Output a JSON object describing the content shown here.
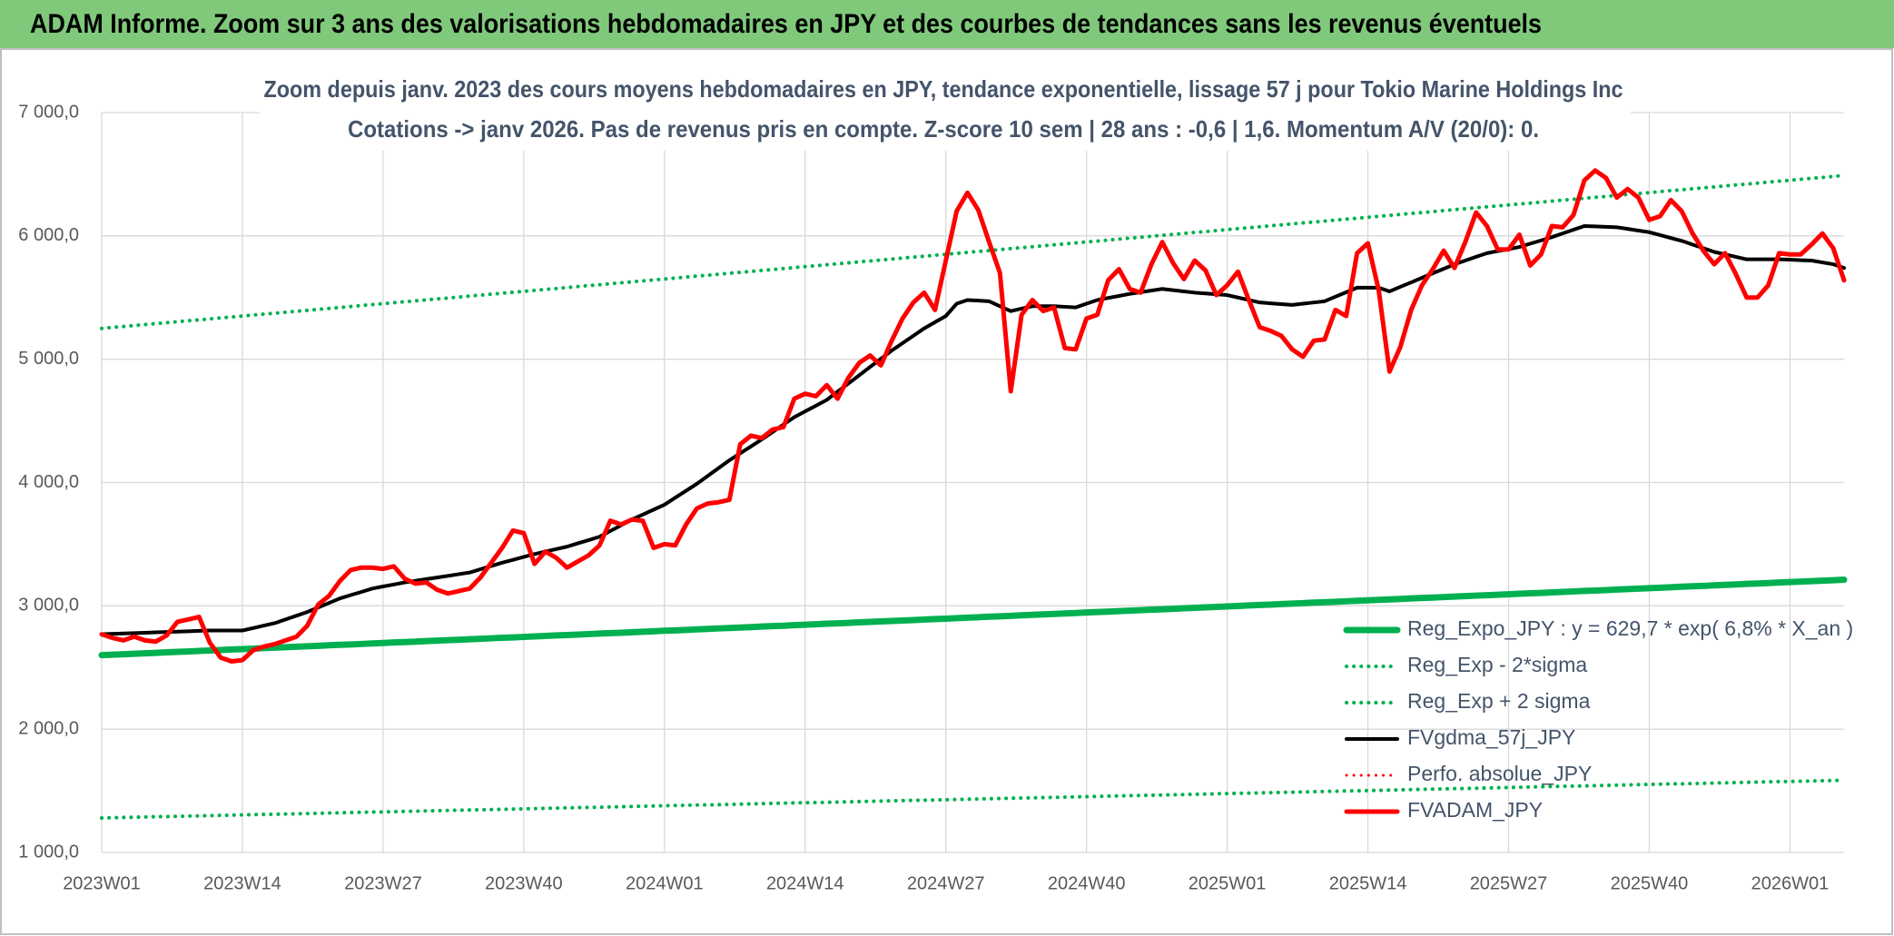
{
  "chart_data": {
    "type": "line",
    "header": "ADAM Informe. Zoom sur 3 ans des valorisations hebdomadaires en JPY et des courbes de tendances sans les revenus éventuels",
    "title": "Zoom depuis janv. 2023 des cours moyens hebdomadaires en JPY, tendance exponentielle, lissage 57 j pour Tokio Marine Holdings Inc",
    "subtitle": "Cotations -> janv 2026. Pas de revenus pris en compte. Z-score 10 sem | 28 ans : -0,6 | 1,6. Momentum A/V (20/0): 0.",
    "grid": true,
    "legend": "lower right",
    "ylim": [
      1000,
      7000
    ],
    "yticks": [
      {
        "value": 1000,
        "label": "1 000,0"
      },
      {
        "value": 2000,
        "label": "2 000,0"
      },
      {
        "value": 3000,
        "label": "3 000,0"
      },
      {
        "value": 4000,
        "label": "4 000,0"
      },
      {
        "value": 5000,
        "label": "5 000,0"
      },
      {
        "value": 6000,
        "label": "6 000,0"
      },
      {
        "value": 7000,
        "label": "7 000,0"
      }
    ],
    "categories": [
      "2023W01",
      null,
      null,
      null,
      null,
      null,
      null,
      null,
      null,
      null,
      null,
      null,
      null,
      "2023W14",
      null,
      null,
      null,
      null,
      null,
      null,
      null,
      null,
      null,
      null,
      null,
      null,
      "2023W27",
      null,
      null,
      null,
      null,
      null,
      null,
      null,
      null,
      null,
      null,
      null,
      null,
      "2023W40",
      null,
      null,
      null,
      null,
      null,
      null,
      null,
      null,
      null,
      null,
      null,
      null,
      "2024W01",
      null,
      null,
      null,
      null,
      null,
      null,
      null,
      null,
      null,
      null,
      null,
      null,
      "2024W14",
      null,
      null,
      null,
      null,
      null,
      null,
      null,
      null,
      null,
      null,
      null,
      null,
      "2024W27",
      null,
      null,
      null,
      null,
      null,
      null,
      null,
      null,
      null,
      null,
      null,
      null,
      "2024W40",
      null,
      null,
      null,
      null,
      null,
      null,
      null,
      null,
      null,
      null,
      null,
      null,
      "2025W01",
      null,
      null,
      null,
      null,
      null,
      null,
      null,
      null,
      null,
      null,
      null,
      null,
      "2025W14",
      null,
      null,
      null,
      null,
      null,
      null,
      null,
      null,
      null,
      null,
      null,
      null,
      "2025W27",
      null,
      null,
      null,
      null,
      null,
      null,
      null,
      null,
      null,
      null,
      null,
      null,
      "2025W40",
      null,
      null,
      null,
      null,
      null,
      null,
      null,
      null,
      null,
      null,
      null,
      null,
      "2026W01",
      null,
      null,
      null,
      null,
      null
    ],
    "series": [
      {
        "name": "Reg_Expo_JPY : y = 629,7 * exp( 6,8% *  X_an )",
        "color": "#00b050",
        "line_style": "solid",
        "values": [
          2600,
          2604,
          2608,
          2611,
          2615,
          2619,
          2623,
          2627,
          2630,
          2634,
          2638,
          2642,
          2646,
          2649,
          2653,
          2657,
          2661,
          2665,
          2668,
          2672,
          2676,
          2680,
          2684,
          2687,
          2691,
          2695,
          2699,
          2703,
          2706,
          2710,
          2714,
          2718,
          2722,
          2725,
          2729,
          2733,
          2737,
          2741,
          2744,
          2748,
          2752,
          2756,
          2760,
          2763,
          2767,
          2771,
          2775,
          2779,
          2782,
          2786,
          2790,
          2794,
          2798,
          2801,
          2805,
          2809,
          2813,
          2817,
          2820,
          2824,
          2828,
          2832,
          2836,
          2839,
          2843,
          2847,
          2851,
          2855,
          2858,
          2862,
          2866,
          2870,
          2874,
          2877,
          2881,
          2885,
          2889,
          2893,
          2896,
          2900,
          2904,
          2908,
          2912,
          2915,
          2919,
          2923,
          2927,
          2931,
          2934,
          2938,
          2942,
          2946,
          2950,
          2953,
          2957,
          2961,
          2965,
          2969,
          2972,
          2976,
          2980,
          2984,
          2988,
          2991,
          2995,
          2999,
          3003,
          3007,
          3010,
          3014,
          3018,
          3022,
          3026,
          3029,
          3033,
          3037,
          3041,
          3045,
          3048,
          3052,
          3056,
          3060,
          3064,
          3067,
          3071,
          3075,
          3079,
          3083,
          3086,
          3090,
          3094,
          3098,
          3102,
          3105,
          3109,
          3113,
          3117,
          3121,
          3124,
          3128,
          3132,
          3136,
          3140,
          3143,
          3147,
          3151,
          3155,
          3159,
          3162,
          3166,
          3170,
          3174,
          3178,
          3181,
          3185,
          3189,
          3193,
          3197,
          3200,
          3204,
          3208,
          3212
        ]
      },
      {
        "name": "Reg_Exp - 2*sigma",
        "color": "#00b050",
        "line_style": "dotted",
        "values": [
          1280,
          1282,
          1284,
          1286,
          1288,
          1290,
          1291,
          1293,
          1295,
          1297,
          1299,
          1301,
          1303,
          1305,
          1307,
          1309,
          1310,
          1312,
          1314,
          1316,
          1318,
          1320,
          1322,
          1324,
          1326,
          1328,
          1329,
          1331,
          1333,
          1335,
          1337,
          1339,
          1341,
          1343,
          1345,
          1347,
          1348,
          1350,
          1352,
          1354,
          1356,
          1358,
          1360,
          1362,
          1364,
          1366,
          1367,
          1369,
          1371,
          1373,
          1375,
          1377,
          1379,
          1381,
          1383,
          1385,
          1386,
          1388,
          1390,
          1392,
          1394,
          1396,
          1398,
          1400,
          1402,
          1404,
          1405,
          1407,
          1409,
          1411,
          1413,
          1415,
          1417,
          1419,
          1421,
          1423,
          1424,
          1426,
          1428,
          1430,
          1432,
          1434,
          1436,
          1438,
          1440,
          1442,
          1443,
          1445,
          1447,
          1449,
          1451,
          1453,
          1455,
          1457,
          1459,
          1461,
          1462,
          1464,
          1466,
          1468,
          1470,
          1472,
          1474,
          1476,
          1478,
          1480,
          1481,
          1483,
          1485,
          1487,
          1489,
          1491,
          1493,
          1495,
          1497,
          1499,
          1500,
          1502,
          1504,
          1506,
          1508,
          1510,
          1512,
          1514,
          1516,
          1518,
          1519,
          1521,
          1523,
          1525,
          1527,
          1529,
          1531,
          1533,
          1535,
          1537,
          1538,
          1540,
          1542,
          1544,
          1546,
          1548,
          1550,
          1552,
          1554,
          1556,
          1557,
          1559,
          1561,
          1563,
          1565,
          1567,
          1569,
          1571,
          1573,
          1575,
          1576,
          1578,
          1580,
          1582,
          1584,
          1586
        ]
      },
      {
        "name": "Reg_Exp + 2 sigma",
        "color": "#00b050",
        "line_style": "dotted",
        "values": [
          5250,
          5258,
          5265,
          5273,
          5281,
          5289,
          5296,
          5304,
          5312,
          5319,
          5327,
          5335,
          5342,
          5350,
          5358,
          5366,
          5373,
          5381,
          5389,
          5396,
          5404,
          5412,
          5419,
          5427,
          5435,
          5443,
          5450,
          5458,
          5466,
          5473,
          5481,
          5489,
          5496,
          5504,
          5512,
          5520,
          5527,
          5535,
          5543,
          5550,
          5558,
          5566,
          5573,
          5581,
          5589,
          5597,
          5604,
          5612,
          5620,
          5627,
          5635,
          5643,
          5650,
          5658,
          5666,
          5674,
          5681,
          5689,
          5697,
          5704,
          5712,
          5720,
          5727,
          5735,
          5743,
          5751,
          5758,
          5766,
          5774,
          5781,
          5789,
          5797,
          5804,
          5812,
          5820,
          5828,
          5835,
          5843,
          5851,
          5858,
          5866,
          5874,
          5881,
          5889,
          5897,
          5905,
          5912,
          5920,
          5928,
          5935,
          5943,
          5951,
          5958,
          5966,
          5974,
          5982,
          5989,
          5997,
          6005,
          6012,
          6020,
          6028,
          6035,
          6043,
          6051,
          6059,
          6066,
          6074,
          6082,
          6089,
          6097,
          6105,
          6112,
          6120,
          6128,
          6136,
          6143,
          6151,
          6159,
          6166,
          6174,
          6182,
          6189,
          6197,
          6205,
          6213,
          6220,
          6228,
          6236,
          6243,
          6251,
          6259,
          6266,
          6274,
          6282,
          6290,
          6297,
          6305,
          6313,
          6320,
          6328,
          6336,
          6343,
          6351,
          6359,
          6367,
          6374,
          6382,
          6390,
          6397,
          6405,
          6413,
          6420,
          6428,
          6436,
          6444,
          6451,
          6459,
          6467,
          6474,
          6482,
          6490
        ]
      },
      {
        "name": "FVgdma_57j_JPY",
        "color": "#000000",
        "line_style": "solid",
        "values": [
          2770,
          2773,
          2776,
          2779,
          2782,
          2785,
          2788,
          2791,
          2794,
          2797,
          2800,
          2800,
          2800,
          2800,
          2820,
          2840,
          2860,
          2890,
          2920,
          2950,
          2987,
          3023,
          3060,
          3087,
          3113,
          3140,
          3157,
          3173,
          3190,
          3203,
          3217,
          3230,
          3243,
          3257,
          3270,
          3297,
          3323,
          3350,
          3373,
          3397,
          3420,
          3440,
          3460,
          3480,
          3507,
          3533,
          3560,
          3607,
          3653,
          3700,
          3740,
          3780,
          3820,
          3877,
          3933,
          3990,
          4053,
          4117,
          4180,
          4237,
          4293,
          4350,
          4410,
          4470,
          4530,
          4577,
          4623,
          4670,
          4737,
          4803,
          4870,
          4937,
          5003,
          5070,
          5130,
          5190,
          5250,
          5300,
          5350,
          5450,
          5480,
          5475,
          5470,
          5430,
          5390,
          5410,
          5430,
          5430,
          5430,
          5425,
          5420,
          5450,
          5480,
          5497,
          5513,
          5530,
          5543,
          5557,
          5570,
          5560,
          5550,
          5540,
          5533,
          5527,
          5520,
          5500,
          5480,
          5460,
          5453,
          5447,
          5440,
          5450,
          5460,
          5470,
          5507,
          5543,
          5580,
          5580,
          5580,
          5550,
          5587,
          5623,
          5660,
          5697,
          5733,
          5770,
          5800,
          5830,
          5860,
          5877,
          5893,
          5910,
          5937,
          5963,
          5990,
          6020,
          6050,
          6080,
          6077,
          6073,
          6070,
          6057,
          6043,
          6030,
          6007,
          5983,
          5960,
          5930,
          5900,
          5870,
          5850,
          5830,
          5810,
          5810,
          5810,
          5810,
          5807,
          5803,
          5800,
          5785,
          5770,
          5740
        ]
      },
      {
        "name": "Perfo. absolue_JPY",
        "color": "#ff0000",
        "line_style": "dotted",
        "values": [
          null,
          null,
          null,
          null,
          null,
          null,
          null,
          null,
          null,
          null,
          null,
          null,
          null,
          null,
          null,
          null,
          null,
          null,
          null,
          null,
          null,
          null,
          null,
          null,
          null,
          null,
          null,
          null,
          null,
          null,
          null,
          null,
          null,
          null,
          null,
          null,
          null,
          null,
          null,
          null,
          null,
          null,
          null,
          null,
          null,
          null,
          null,
          null,
          null,
          null,
          null,
          null,
          null,
          null,
          null,
          null,
          null,
          null,
          null,
          null,
          null,
          null,
          null,
          null,
          null,
          null,
          null,
          null,
          null,
          null,
          null,
          null,
          null,
          null,
          null,
          null,
          null,
          null,
          null,
          null,
          null,
          null,
          null,
          null,
          null,
          null,
          null,
          null,
          null,
          null,
          null,
          null,
          null,
          null,
          null,
          null,
          null,
          null,
          null,
          null,
          null,
          null,
          null,
          null,
          null,
          null,
          null,
          null,
          null,
          null,
          null,
          null,
          null,
          null,
          null,
          null,
          null,
          null,
          null,
          null,
          null,
          null,
          null,
          null,
          null,
          null,
          null,
          null,
          null,
          null,
          null,
          null,
          null,
          null,
          null,
          null,
          null,
          null,
          null,
          null,
          null,
          null,
          null,
          null,
          null,
          null,
          null,
          null,
          null,
          null,
          null,
          null,
          null,
          null,
          null,
          null,
          null,
          null,
          null,
          null,
          null,
          null
        ]
      },
      {
        "name": "FVADAM_JPY",
        "color": "#ff0000",
        "line_style": "solid",
        "values": [
          2770,
          2740,
          2720,
          2750,
          2720,
          2710,
          2760,
          2870,
          2890,
          2910,
          2700,
          2580,
          2550,
          2560,
          2640,
          2670,
          2690,
          2720,
          2750,
          2840,
          3010,
          3080,
          3200,
          3290,
          3310,
          3310,
          3300,
          3320,
          3220,
          3180,
          3190,
          3130,
          3100,
          3120,
          3140,
          3230,
          3350,
          3470,
          3610,
          3590,
          3340,
          3440,
          3390,
          3310,
          3360,
          3410,
          3490,
          3690,
          3660,
          3700,
          3690,
          3470,
          3500,
          3490,
          3660,
          3790,
          3830,
          3840,
          3860,
          4310,
          4380,
          4360,
          4430,
          4450,
          4680,
          4720,
          4700,
          4790,
          4680,
          4850,
          4970,
          5030,
          4950,
          5150,
          5330,
          5460,
          5540,
          5400,
          5800,
          6200,
          6350,
          6210,
          5950,
          5700,
          4740,
          5360,
          5480,
          5390,
          5420,
          5090,
          5080,
          5330,
          5360,
          5640,
          5730,
          5570,
          5540,
          5770,
          5950,
          5780,
          5650,
          5800,
          5720,
          5520,
          5600,
          5710,
          5480,
          5260,
          5230,
          5190,
          5080,
          5020,
          5150,
          5160,
          5400,
          5350,
          5860,
          5940,
          5560,
          4900,
          5100,
          5400,
          5600,
          5730,
          5880,
          5740,
          5950,
          6190,
          6080,
          5890,
          5890,
          6010,
          5760,
          5850,
          6080,
          6070,
          6170,
          6450,
          6530,
          6470,
          6310,
          6380,
          6310,
          6130,
          6160,
          6290,
          6200,
          6020,
          5880,
          5770,
          5860,
          5690,
          5500,
          5500,
          5600,
          5860,
          5850,
          5850,
          5930,
          6020,
          5900,
          5640
        ]
      }
    ]
  }
}
